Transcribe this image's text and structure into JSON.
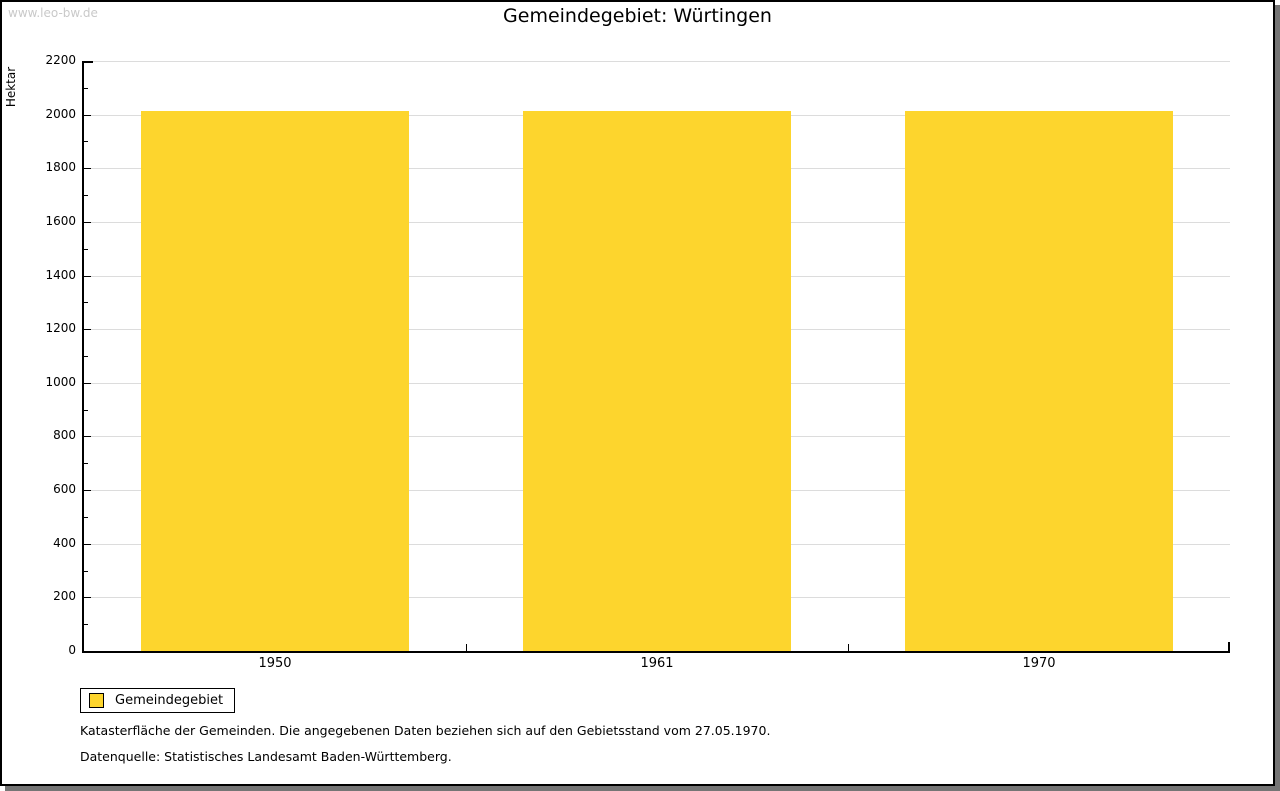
{
  "watermark": "www.leo-bw.de",
  "title": "Gemeindegebiet: Würtingen",
  "chart_data": {
    "type": "bar",
    "categories": [
      "1950",
      "1961",
      "1970"
    ],
    "series": [
      {
        "name": "Gemeindegebiet",
        "values": [
          2012,
          2012,
          2012
        ],
        "color": "#fdd52d"
      }
    ],
    "title": "Gemeindegebiet: Würtingen",
    "xlabel": "",
    "ylabel": "Hektar",
    "ylim": [
      0,
      2200
    ],
    "y_major_step": 200,
    "y_minor_step": 100,
    "grid": true,
    "bar_width_fraction": 0.7,
    "legend_position": "bottom-left",
    "gridline_color": "#dcdcdc"
  },
  "legend": {
    "items": [
      {
        "label": "Gemeindegebiet",
        "color": "#fdd52d"
      }
    ]
  },
  "footnotes": [
    "Katasterfläche der Gemeinden. Die angegebenen Daten beziehen sich auf den Gebietsstand vom 27.05.1970.",
    "Datenquelle: Statistisches Landesamt Baden-Württemberg."
  ]
}
